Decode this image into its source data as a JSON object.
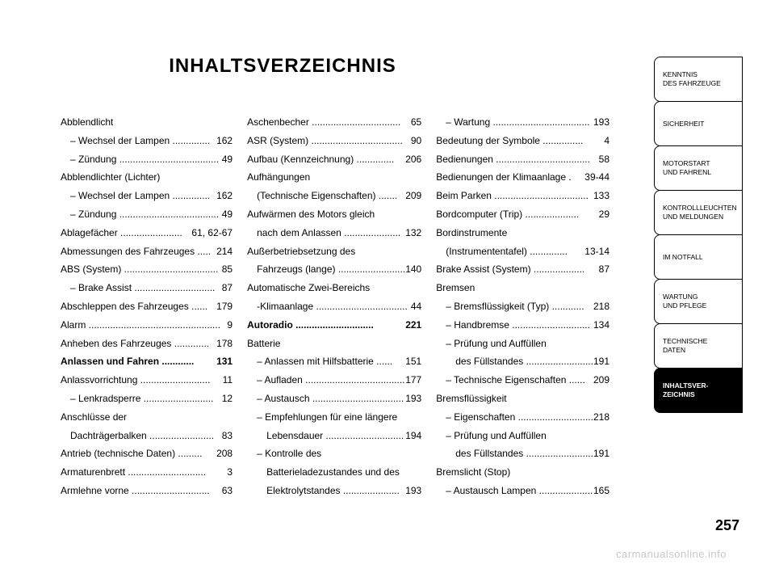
{
  "title": "INHALTSVERZEICHNIS",
  "pagenum": "257",
  "watermark": "carmanualsonline.info",
  "sidebar": [
    {
      "l1": "KENNTNIS",
      "l2": "DES FAHRZEUGE"
    },
    {
      "l1": "SICHERHEIT",
      "l2": ""
    },
    {
      "l1": "MOTORSTART",
      "l2": "UND FAHRENL"
    },
    {
      "l1": "KONTROLLLEUCHTEN",
      "l2": "UND MELDUNGEN"
    },
    {
      "l1": "IM NOTFALL",
      "l2": ""
    },
    {
      "l1": "WARTUNG",
      "l2": "UND PFLEGE"
    },
    {
      "l1": "TECHNISCHE",
      "l2": "DATEN"
    },
    {
      "l1": "INHALTSVER-",
      "l2": "ZEICHNIS"
    }
  ],
  "col1": [
    {
      "label": "Abblendlicht",
      "pg": "",
      "dropcap": true
    },
    {
      "label": "– Wechsel der Lampen ..............",
      "pg": "162",
      "sub": true
    },
    {
      "label": "– Zündung .....................................",
      "pg": "49",
      "sub": true
    },
    {
      "label": "Abblendlichter (Lichter)",
      "pg": ""
    },
    {
      "label": "– Wechsel der Lampen ..............",
      "pg": "162",
      "sub": true
    },
    {
      "label": "– Zündung .....................................",
      "pg": "49",
      "sub": true
    },
    {
      "label": "Ablagefächer .......................",
      "pg": "61, 62-67"
    },
    {
      "label": "Abmessungen des Fahrzeuges .....",
      "pg": "214"
    },
    {
      "label": "ABS (System) ...................................",
      "pg": "85"
    },
    {
      "label": "– Brake Assist ..............................",
      "pg": "87",
      "sub": true
    },
    {
      "label": "Abschleppen des Fahrzeuges ......",
      "pg": "179"
    },
    {
      "label": "Alarm .................................................",
      "pg": "9"
    },
    {
      "label": "Anheben des Fahrzeuges .............",
      "pg": "178"
    },
    {
      "label": "Anlassen und Fahren ............",
      "pg": "131",
      "bold": true
    },
    {
      "label": "Anlassvorrichtung ..........................",
      "pg": "11"
    },
    {
      "label": "– Lenkradsperre ..........................",
      "pg": "12",
      "sub": true
    },
    {
      "label": "Anschlüsse der",
      "pg": ""
    },
    {
      "label": "Dachträgerbalken ........................",
      "pg": "83",
      "sub": true
    },
    {
      "label": "Antrieb (technische Daten) .........",
      "pg": "208"
    },
    {
      "label": "Armaturenbrett .............................",
      "pg": "3"
    },
    {
      "label": "Armlehne vorne .............................",
      "pg": "63"
    }
  ],
  "col2": [
    {
      "label": "Aschenbecher .................................",
      "pg": "65"
    },
    {
      "label": "ASR (System) ..................................",
      "pg": "90"
    },
    {
      "label": "Aufbau (Kennzeichnung) ..............",
      "pg": "206"
    },
    {
      "label": "Aufhängungen",
      "pg": ""
    },
    {
      "label": "(Technische Eigenschaften) .......",
      "pg": "209",
      "sub": true
    },
    {
      "label": "Aufwärmen des Motors gleich",
      "pg": ""
    },
    {
      "label": "nach dem Anlassen .....................",
      "pg": "132",
      "sub": true
    },
    {
      "label": "Außerbetriebsetzung des",
      "pg": ""
    },
    {
      "label": "Fahrzeugs (lange) .........................",
      "pg": "140",
      "sub": true
    },
    {
      "label": "Automatische Zwei-Bereichs",
      "pg": ""
    },
    {
      "label": "-Klimaanlage ..................................",
      "pg": "44",
      "sub": true
    },
    {
      "label": "Autoradio .............................",
      "pg": "221",
      "bold": true
    },
    {
      "label": "Batterie",
      "pg": "",
      "dropcap": true
    },
    {
      "label": "– Anlassen mit Hilfsbatterie ......",
      "pg": "151",
      "sub": true
    },
    {
      "label": "– Aufladen .....................................",
      "pg": "177",
      "sub": true
    },
    {
      "label": "– Austausch ..................................",
      "pg": "193",
      "sub": true
    },
    {
      "label": "– Empfehlungen für eine längere",
      "pg": "",
      "sub": true
    },
    {
      "label": "Lebensdauer .............................",
      "pg": "194",
      "sub2": true
    },
    {
      "label": "– Kontrolle des",
      "pg": "",
      "sub": true
    },
    {
      "label": "Batterieladezustandes und des",
      "pg": "",
      "sub2": true
    },
    {
      "label": "Elektrolytstandes .....................",
      "pg": "193",
      "sub2": true
    }
  ],
  "col3": [
    {
      "label": "– Wartung ....................................",
      "pg": "193",
      "sub": true
    },
    {
      "label": "Bedeutung der Symbole ...............",
      "pg": "4"
    },
    {
      "label": "Bedienungen ...................................",
      "pg": "58"
    },
    {
      "label": "Bedienungen der Klimaanlage .",
      "pg": "39-44"
    },
    {
      "label": "Beim Parken ...................................",
      "pg": "133"
    },
    {
      "label": "Bordcomputer (Trip) ....................",
      "pg": "29"
    },
    {
      "label": "Bordinstrumente",
      "pg": ""
    },
    {
      "label": "(Instrumententafel) ..............",
      "pg": "13-14",
      "sub": true
    },
    {
      "label": "Brake Assist (System) ...................",
      "pg": "87"
    },
    {
      "label": "Bremsen",
      "pg": ""
    },
    {
      "label": "– Bremsflüssigkeit (Typ) ............",
      "pg": "218",
      "sub": true
    },
    {
      "label": "– Handbremse .............................",
      "pg": "134",
      "sub": true
    },
    {
      "label": "– Prüfung und Auffüllen",
      "pg": "",
      "sub": true
    },
    {
      "label": "des Füllstandes .........................",
      "pg": "191",
      "sub2": true
    },
    {
      "label": "– Technische Eigenschaften ......",
      "pg": "209",
      "sub": true
    },
    {
      "label": "Bremsflüssigkeit",
      "pg": ""
    },
    {
      "label": "– Eigenschaften ............................",
      "pg": "218",
      "sub": true
    },
    {
      "label": "– Prüfung und Auffüllen",
      "pg": "",
      "sub": true
    },
    {
      "label": "des Füllstandes .........................",
      "pg": "191",
      "sub2": true
    },
    {
      "label": "Bremslicht (Stop)",
      "pg": ""
    },
    {
      "label": "– Austausch Lampen ....................",
      "pg": "165",
      "sub": true
    }
  ]
}
